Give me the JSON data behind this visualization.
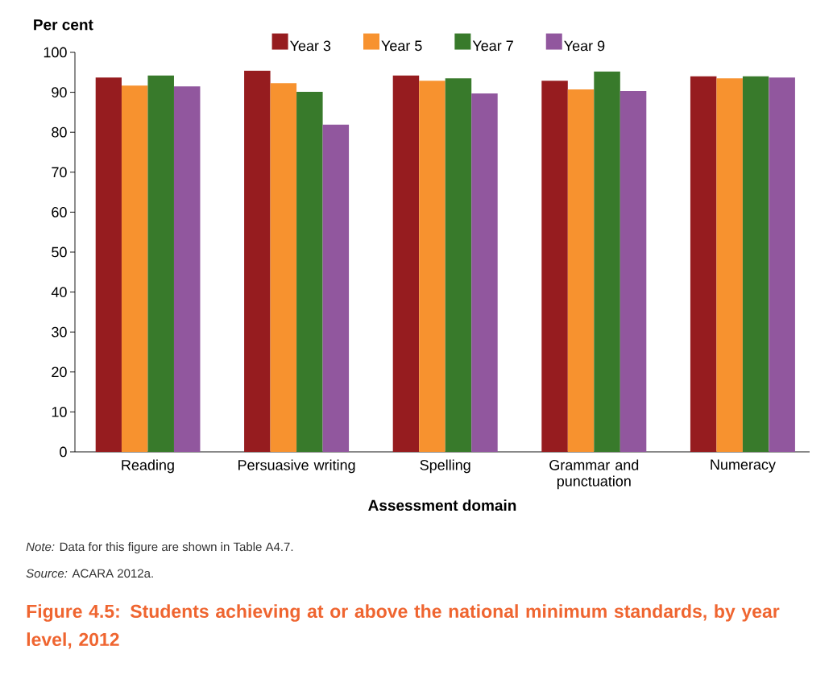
{
  "chart_data": {
    "type": "bar",
    "title": "Figure 4.5: Students achieving at or above the national minimum standards, by year level, 2012",
    "xlabel": "Assessment domain",
    "ylabel": "Per cent",
    "categories": [
      "Reading",
      "Persuasive writing",
      "Spelling",
      "Grammar and punctuation",
      "Numeracy"
    ],
    "series": [
      {
        "name": "Year 3",
        "color": "#961c1f",
        "values": [
          93.7,
          95.4,
          94.2,
          92.9,
          94.0
        ]
      },
      {
        "name": "Year 5",
        "color": "#f7922f",
        "values": [
          91.7,
          92.3,
          92.9,
          90.7,
          93.5
        ]
      },
      {
        "name": "Year 7",
        "color": "#387a2b",
        "values": [
          94.2,
          90.1,
          93.5,
          95.2,
          94.0
        ]
      },
      {
        "name": "Year 9",
        "color": "#91579e",
        "values": [
          91.5,
          81.9,
          89.7,
          90.3,
          93.7
        ]
      }
    ],
    "ylim": [
      0,
      100
    ],
    "yticks": [
      0,
      10,
      20,
      30,
      40,
      50,
      60,
      70,
      80,
      90,
      100
    ],
    "legend": "top",
    "annotations": [
      "*Note:* Data for this figure are shown in Table A4.7.",
      "*Source:* ACARA 2012a."
    ]
  }
}
